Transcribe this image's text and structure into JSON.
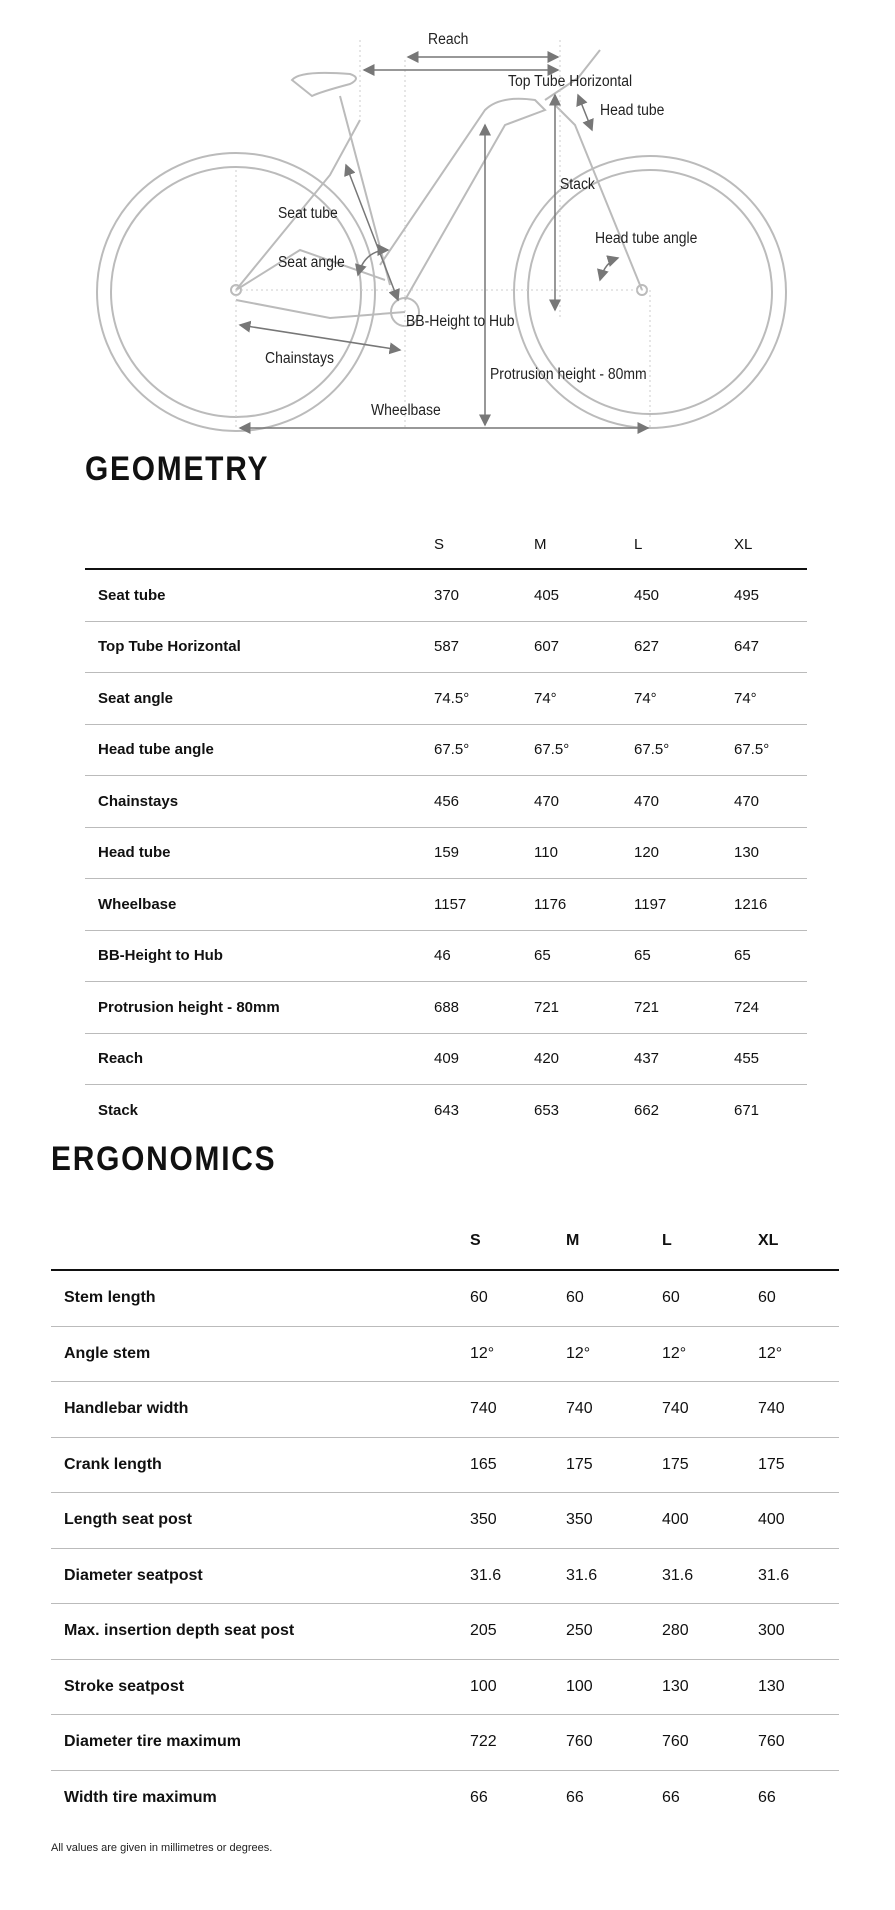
{
  "diagram": {
    "labels": {
      "reach": "Reach",
      "top_tube_horizontal": "Top Tube Horizontal",
      "head_tube": "Head tube",
      "stack": "Stack",
      "seat_tube": "Seat tube",
      "seat_angle": "Seat angle",
      "head_tube_angle": "Head tube angle",
      "bb_height": "BB-Height to Hub",
      "chainstays": "Chainstays",
      "protrusion": "Protrusion height - 80mm",
      "wheelbase": "Wheelbase"
    }
  },
  "geometry": {
    "title": "GEOMETRY",
    "sizes": [
      "S",
      "M",
      "L",
      "XL"
    ],
    "rows": [
      {
        "label": "Seat tube",
        "values": [
          "370",
          "405",
          "450",
          "495"
        ]
      },
      {
        "label": "Top Tube Horizontal",
        "values": [
          "587",
          "607",
          "627",
          "647"
        ]
      },
      {
        "label": "Seat angle",
        "values": [
          "74.5°",
          "74°",
          "74°",
          "74°"
        ]
      },
      {
        "label": "Head tube angle",
        "values": [
          "67.5°",
          "67.5°",
          "67.5°",
          "67.5°"
        ]
      },
      {
        "label": "Chainstays",
        "values": [
          "456",
          "470",
          "470",
          "470"
        ]
      },
      {
        "label": "Head tube",
        "values": [
          "159",
          "110",
          "120",
          "130"
        ]
      },
      {
        "label": "Wheelbase",
        "values": [
          "1157",
          "1176",
          "1197",
          "1216"
        ]
      },
      {
        "label": "BB-Height to Hub",
        "values": [
          "46",
          "65",
          "65",
          "65"
        ]
      },
      {
        "label": "Protrusion height - 80mm",
        "values": [
          "688",
          "721",
          "721",
          "724"
        ]
      },
      {
        "label": "Reach",
        "values": [
          "409",
          "420",
          "437",
          "455"
        ]
      },
      {
        "label": "Stack",
        "values": [
          "643",
          "653",
          "662",
          "671"
        ]
      }
    ]
  },
  "ergonomics": {
    "title": "ERGONOMICS",
    "sizes": [
      "S",
      "M",
      "L",
      "XL"
    ],
    "rows": [
      {
        "label": "Stem length",
        "values": [
          "60",
          "60",
          "60",
          "60"
        ]
      },
      {
        "label": "Angle stem",
        "values": [
          "12°",
          "12°",
          "12°",
          "12°"
        ]
      },
      {
        "label": "Handlebar width",
        "values": [
          "740",
          "740",
          "740",
          "740"
        ]
      },
      {
        "label": "Crank length",
        "values": [
          "165",
          "175",
          "175",
          "175"
        ]
      },
      {
        "label": "Length seat post",
        "values": [
          "350",
          "350",
          "400",
          "400"
        ]
      },
      {
        "label": "Diameter seatpost",
        "values": [
          "31.6",
          "31.6",
          "31.6",
          "31.6"
        ]
      },
      {
        "label": "Max. insertion depth seat post",
        "values": [
          "205",
          "250",
          "280",
          "300"
        ]
      },
      {
        "label": "Stroke seatpost",
        "values": [
          "100",
          "100",
          "130",
          "130"
        ]
      },
      {
        "label": "Diameter tire maximum",
        "values": [
          "722",
          "760",
          "760",
          "760"
        ]
      },
      {
        "label": "Width tire maximum",
        "values": [
          "66",
          "66",
          "66",
          "66"
        ]
      }
    ]
  },
  "footnote": "All values are given in millimetres or degrees."
}
